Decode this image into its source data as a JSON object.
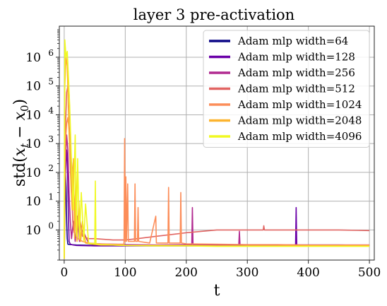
{
  "chart_data": {
    "type": "line",
    "title": "layer 3 pre-activation",
    "xlabel": "t",
    "ylabel": "std(x_t − x_0)",
    "ylabel_parts": {
      "pre": "std(",
      "x": "x",
      "sub_t": "t",
      "minus": " − ",
      "x0": "x",
      "sub_0": "0",
      "post": ")"
    },
    "xlim": [
      -8,
      508
    ],
    "ylim": [
      0.09,
      12000000
    ],
    "yscale": "log",
    "grid": true,
    "legend_position": "top-right",
    "x_ticks": [
      0,
      100,
      200,
      300,
      400,
      500
    ],
    "x_tick_labels": [
      "0",
      "100",
      "200",
      "300",
      "400",
      "500"
    ],
    "y_ticks": [
      1,
      10,
      100,
      1000,
      10000,
      100000,
      1000000
    ],
    "y_tick_labels": [
      {
        "base": "10",
        "exp": "0"
      },
      {
        "base": "10",
        "exp": "1"
      },
      {
        "base": "10",
        "exp": "2"
      },
      {
        "base": "10",
        "exp": "3"
      },
      {
        "base": "10",
        "exp": "4"
      },
      {
        "base": "10",
        "exp": "5"
      },
      {
        "base": "10",
        "exp": "6"
      }
    ],
    "series": [
      {
        "name": "Adam mlp width=64",
        "color": "#0d0887",
        "points": [
          [
            0,
            0.1
          ],
          [
            1,
            40
          ],
          [
            2,
            100
          ],
          [
            3,
            30
          ],
          [
            4,
            2
          ],
          [
            5,
            0.5
          ],
          [
            6,
            0.32
          ],
          [
            10,
            0.31
          ],
          [
            20,
            0.3
          ],
          [
            50,
            0.29
          ],
          [
            100,
            0.29
          ],
          [
            150,
            0.29
          ],
          [
            200,
            0.29
          ],
          [
            250,
            0.29
          ],
          [
            300,
            0.29
          ],
          [
            350,
            0.3
          ],
          [
            400,
            0.3
          ],
          [
            450,
            0.3
          ],
          [
            500,
            0.29
          ]
        ]
      },
      {
        "name": "Adam mlp width=128",
        "color": "#6a00a8",
        "points": [
          [
            0,
            0.1
          ],
          [
            2,
            80
          ],
          [
            4,
            600
          ],
          [
            5,
            300
          ],
          [
            6,
            30
          ],
          [
            7,
            3
          ],
          [
            8,
            0.4
          ],
          [
            10,
            0.32
          ],
          [
            15,
            0.3
          ],
          [
            20,
            0.29
          ],
          [
            50,
            0.28
          ],
          [
            100,
            0.28
          ],
          [
            150,
            0.28
          ],
          [
            200,
            0.28
          ],
          [
            250,
            0.28
          ],
          [
            300,
            0.28
          ],
          [
            350,
            0.28
          ],
          [
            379,
            0.28
          ],
          [
            380,
            6
          ],
          [
            381,
            0.28
          ],
          [
            400,
            0.28
          ],
          [
            450,
            0.28
          ],
          [
            500,
            0.28
          ]
        ]
      },
      {
        "name": "Adam mlp width=256",
        "color": "#b12a90",
        "points": [
          [
            0,
            0.1
          ],
          [
            2,
            200
          ],
          [
            4,
            2000
          ],
          [
            6,
            600
          ],
          [
            8,
            20
          ],
          [
            10,
            2
          ],
          [
            12,
            0.5
          ],
          [
            15,
            2
          ],
          [
            18,
            0.4
          ],
          [
            22,
            3
          ],
          [
            25,
            0.4
          ],
          [
            30,
            1
          ],
          [
            40,
            0.35
          ],
          [
            50,
            0.33
          ],
          [
            80,
            0.32
          ],
          [
            100,
            0.31
          ],
          [
            150,
            0.3
          ],
          [
            200,
            0.31
          ],
          [
            209,
            0.31
          ],
          [
            210,
            6
          ],
          [
            211,
            0.31
          ],
          [
            250,
            0.3
          ],
          [
            286,
            0.31
          ],
          [
            287,
            0.9
          ],
          [
            288,
            0.31
          ],
          [
            300,
            0.3
          ],
          [
            350,
            0.3
          ],
          [
            400,
            0.3
          ],
          [
            450,
            0.3
          ],
          [
            500,
            0.3
          ]
        ]
      },
      {
        "name": "Adam mlp width=512",
        "color": "#e16462",
        "points": [
          [
            0,
            0.1
          ],
          [
            2,
            3000
          ],
          [
            4,
            60000
          ],
          [
            6,
            100000
          ],
          [
            8,
            50000
          ],
          [
            10,
            2000
          ],
          [
            12,
            30
          ],
          [
            14,
            2
          ],
          [
            16,
            0.8
          ],
          [
            18,
            5
          ],
          [
            20,
            0.6
          ],
          [
            25,
            3
          ],
          [
            30,
            0.6
          ],
          [
            40,
            0.5
          ],
          [
            50,
            0.5
          ],
          [
            80,
            0.45
          ],
          [
            100,
            0.45
          ],
          [
            120,
            0.5
          ],
          [
            150,
            0.6
          ],
          [
            200,
            0.8
          ],
          [
            250,
            1.0
          ],
          [
            300,
            1.0
          ],
          [
            326,
            1.0
          ],
          [
            327,
            1.4
          ],
          [
            328,
            1.0
          ],
          [
            350,
            1.0
          ],
          [
            400,
            1.0
          ],
          [
            450,
            1.0
          ],
          [
            500,
            0.95
          ]
        ]
      },
      {
        "name": "Adam mlp width=1024",
        "color": "#fc8d59",
        "points": [
          [
            0,
            0.1
          ],
          [
            2,
            1000
          ],
          [
            4,
            5000
          ],
          [
            6,
            8000
          ],
          [
            8,
            3000
          ],
          [
            10,
            500
          ],
          [
            14,
            100
          ],
          [
            18,
            3
          ],
          [
            22,
            0.5
          ],
          [
            30,
            0.4
          ],
          [
            40,
            0.35
          ],
          [
            60,
            0.33
          ],
          [
            80,
            0.32
          ],
          [
            98,
            0.32
          ],
          [
            99,
            1500
          ],
          [
            100,
            0.4
          ],
          [
            101,
            70
          ],
          [
            102,
            0.4
          ],
          [
            104,
            40
          ],
          [
            105,
            0.4
          ],
          [
            115,
            0.4
          ],
          [
            116,
            40
          ],
          [
            117,
            0.4
          ],
          [
            120,
            0.4
          ],
          [
            121,
            6
          ],
          [
            122,
            0.4
          ],
          [
            140,
            0.35
          ],
          [
            150,
            3
          ],
          [
            151,
            0.35
          ],
          [
            170,
            0.35
          ],
          [
            171,
            30
          ],
          [
            172,
            0.35
          ],
          [
            190,
            0.35
          ],
          [
            191,
            20
          ],
          [
            192,
            0.35
          ],
          [
            200,
            0.33
          ],
          [
            250,
            0.32
          ],
          [
            300,
            0.31
          ],
          [
            350,
            0.31
          ],
          [
            400,
            0.3
          ],
          [
            450,
            0.3
          ],
          [
            500,
            0.3
          ]
        ]
      },
      {
        "name": "Adam mlp width=2048",
        "color": "#fdb42f",
        "points": [
          [
            0,
            0.1
          ],
          [
            1,
            100000
          ],
          [
            3,
            1000000
          ],
          [
            5,
            500000
          ],
          [
            7,
            10000
          ],
          [
            9,
            500
          ],
          [
            11,
            40
          ],
          [
            13,
            5
          ],
          [
            15,
            300
          ],
          [
            17,
            0.5
          ],
          [
            19,
            100
          ],
          [
            21,
            0.4
          ],
          [
            24,
            10
          ],
          [
            27,
            0.4
          ],
          [
            30,
            2
          ],
          [
            35,
            0.35
          ],
          [
            45,
            0.32
          ],
          [
            60,
            0.3
          ],
          [
            80,
            0.3
          ],
          [
            100,
            0.29
          ],
          [
            150,
            0.29
          ],
          [
            200,
            0.29
          ],
          [
            250,
            0.28
          ],
          [
            300,
            0.28
          ],
          [
            350,
            0.28
          ],
          [
            400,
            0.28
          ],
          [
            450,
            0.28
          ],
          [
            500,
            0.28
          ]
        ]
      },
      {
        "name": "Adam mlp width=4096",
        "color": "#f0f921",
        "points": [
          [
            0,
            0.1
          ],
          [
            1,
            4000000
          ],
          [
            3,
            1000000
          ],
          [
            5,
            1600000
          ],
          [
            7,
            200000
          ],
          [
            9,
            20000
          ],
          [
            11,
            1000
          ],
          [
            13,
            50
          ],
          [
            15,
            5
          ],
          [
            18,
            2000
          ],
          [
            20,
            0.6
          ],
          [
            22,
            300
          ],
          [
            25,
            0.5
          ],
          [
            28,
            20
          ],
          [
            32,
            0.4
          ],
          [
            35,
            8
          ],
          [
            40,
            0.35
          ],
          [
            50,
            0.33
          ],
          [
            51,
            50
          ],
          [
            52,
            0.33
          ],
          [
            60,
            0.31
          ],
          [
            80,
            0.3
          ],
          [
            100,
            0.29
          ],
          [
            150,
            0.28
          ],
          [
            200,
            0.28
          ],
          [
            250,
            0.27
          ],
          [
            300,
            0.27
          ],
          [
            350,
            0.27
          ],
          [
            400,
            0.27
          ],
          [
            450,
            0.27
          ],
          [
            500,
            0.27
          ]
        ]
      }
    ]
  }
}
